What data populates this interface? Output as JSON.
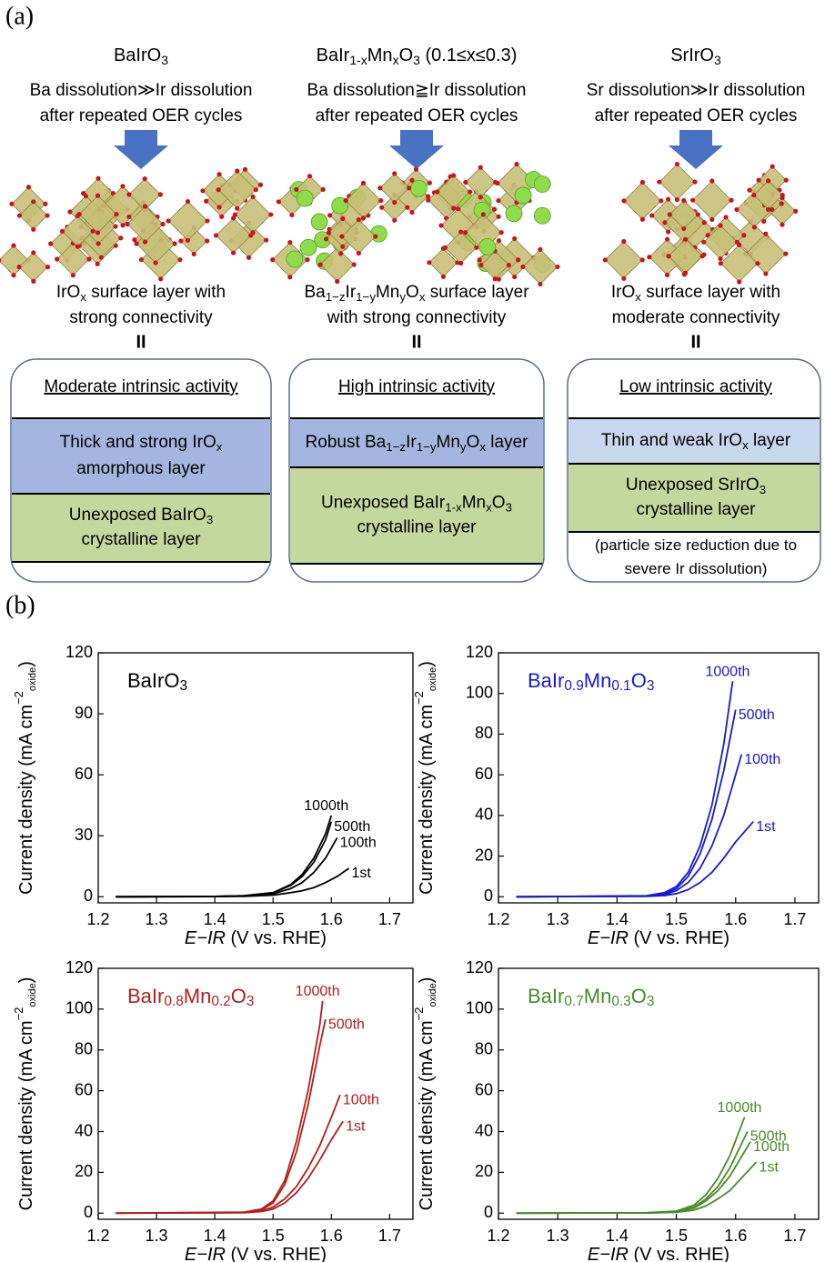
{
  "panel_a": {
    "label": "(a)",
    "columns": [
      {
        "compound": [
          [
            "BaIrO",
            "3"
          ]
        ],
        "dissolution": [
          [
            "Ba dissolution≫Ir dissolution"
          ],
          [
            "after repeated OER cycles"
          ]
        ],
        "surface": [
          [
            "IrO",
            "x",
            " surface layer with"
          ],
          [
            "strong connectivity"
          ]
        ],
        "equals": "II",
        "activity": "Moderate intrinsic activity",
        "top_layer": [
          [
            "Thick and strong IrO",
            "x"
          ],
          [
            "amorphous layer"
          ]
        ],
        "bottom_layer": [
          [
            "Unexposed BaIrO",
            "3"
          ],
          [
            "crystalline layer"
          ]
        ]
      },
      {
        "compound": [
          [
            "BaIr",
            "1-x",
            "Mn",
            "x",
            "O",
            "3",
            " (0.1≤x≤0.3)"
          ]
        ],
        "dissolution": [
          [
            "Ba dissolution≧Ir dissolution"
          ],
          [
            "after repeated OER cycles"
          ]
        ],
        "surface": [
          [
            "Ba",
            "1−z",
            "Ir",
            "1−y",
            "Mn",
            "y",
            "O",
            "x",
            " surface layer"
          ],
          [
            "with strong connectivity"
          ]
        ],
        "equals": "II",
        "activity": "High intrinsic activity",
        "top_layer": [
          [
            "Robust Ba",
            "1−z",
            "Ir",
            "1−y",
            "Mn",
            "y",
            "O",
            "x",
            " layer"
          ]
        ],
        "bottom_layer": [
          [
            "Unexposed BaIr",
            "1-x",
            "Mn",
            "x",
            "O",
            "3"
          ],
          [
            "crystalline layer"
          ]
        ]
      },
      {
        "compound": [
          [
            "SrIrO",
            "3"
          ]
        ],
        "dissolution": [
          [
            "Sr dissolution≫Ir dissolution"
          ],
          [
            "after repeated OER cycles"
          ]
        ],
        "surface": [
          [
            "IrO",
            "x",
            " surface layer with"
          ],
          [
            "moderate connectivity"
          ]
        ],
        "equals": "II",
        "activity": "Low intrinsic activity",
        "top_layer": [
          [
            "Thin and weak IrO",
            "x",
            " layer"
          ]
        ],
        "bottom_layer": [
          [
            "Unexposed SrIrO",
            "3"
          ],
          [
            "crystalline layer"
          ]
        ],
        "note": [
          [
            "(particle size reduction due to"
          ],
          [
            "severe Ir dissolution)"
          ]
        ]
      }
    ]
  },
  "panel_b": {
    "label": "(b)"
  },
  "chart_data": [
    {
      "type": "line",
      "title": [
        "BaIrO",
        "3"
      ],
      "xlabel": [
        "E−IR",
        " (V vs. RHE)"
      ],
      "ylabel": [
        "Current density (mA cm",
        "−2",
        "oxide",
        ")"
      ],
      "xlim": [
        1.2,
        1.74
      ],
      "xticks": [
        1.2,
        1.3,
        1.4,
        1.5,
        1.6,
        1.7
      ],
      "ylim": [
        -3,
        120
      ],
      "yticks": [
        0,
        30,
        60,
        90,
        120
      ],
      "series": [
        {
          "name": "1st",
          "color": "#000000",
          "x": [
            1.23,
            1.4,
            1.45,
            1.5,
            1.53,
            1.55,
            1.57,
            1.59,
            1.61,
            1.63
          ],
          "values": [
            0,
            0.1,
            0.2,
            0.8,
            2,
            3,
            4.5,
            7,
            10,
            14
          ]
        },
        {
          "name": "100th",
          "color": "#000000",
          "x": [
            1.23,
            1.4,
            1.45,
            1.5,
            1.53,
            1.55,
            1.57,
            1.59,
            1.61
          ],
          "values": [
            0,
            0.1,
            0.4,
            1.5,
            4,
            7,
            12,
            19,
            29
          ]
        },
        {
          "name": "500th",
          "color": "#000000",
          "x": [
            1.23,
            1.4,
            1.45,
            1.5,
            1.53,
            1.55,
            1.57,
            1.59,
            1.6
          ],
          "values": [
            0,
            0.2,
            0.5,
            2,
            5.5,
            10,
            17,
            28,
            37
          ]
        },
        {
          "name": "1000th",
          "color": "#000000",
          "x": [
            1.23,
            1.4,
            1.45,
            1.5,
            1.53,
            1.55,
            1.57,
            1.59,
            1.6
          ],
          "values": [
            0,
            0.2,
            0.5,
            2,
            6,
            11,
            19,
            31,
            40
          ]
        }
      ]
    },
    {
      "type": "line",
      "title": [
        "BaIr",
        "0.9",
        "Mn",
        "0.1",
        "O",
        "3"
      ],
      "xlabel": [
        "E−IR",
        " (V vs. RHE)"
      ],
      "ylabel": [
        "Current density (mA cm",
        "−2",
        "oxide",
        ")"
      ],
      "xlim": [
        1.2,
        1.74
      ],
      "xticks": [
        1.2,
        1.3,
        1.4,
        1.5,
        1.6,
        1.7
      ],
      "ylim": [
        -3,
        120
      ],
      "yticks": [
        0,
        20,
        40,
        60,
        80,
        100,
        120
      ],
      "series": [
        {
          "name": "1st",
          "color": "#1a1ad0",
          "x": [
            1.23,
            1.45,
            1.48,
            1.5,
            1.52,
            1.54,
            1.56,
            1.58,
            1.6,
            1.63
          ],
          "values": [
            0,
            0.2,
            0.6,
            1.5,
            3.5,
            7,
            12,
            19,
            27,
            37
          ]
        },
        {
          "name": "100th",
          "color": "#1a1ad0",
          "x": [
            1.23,
            1.45,
            1.48,
            1.5,
            1.52,
            1.54,
            1.56,
            1.58,
            1.6,
            1.61
          ],
          "values": [
            0,
            0.3,
            1,
            3,
            7,
            14,
            25,
            40,
            60,
            70
          ]
        },
        {
          "name": "500th",
          "color": "#1a1ad0",
          "x": [
            1.23,
            1.45,
            1.48,
            1.5,
            1.52,
            1.54,
            1.56,
            1.58,
            1.6
          ],
          "values": [
            0,
            0.4,
            1.5,
            4,
            10,
            21,
            38,
            62,
            92
          ]
        },
        {
          "name": "1000th",
          "color": "#1a1ad0",
          "x": [
            1.23,
            1.45,
            1.48,
            1.5,
            1.52,
            1.54,
            1.56,
            1.58,
            1.595
          ],
          "values": [
            0,
            0.5,
            2,
            5,
            12,
            25,
            45,
            75,
            106
          ]
        }
      ]
    },
    {
      "type": "line",
      "title": [
        "BaIr",
        "0.8",
        "Mn",
        "0.2",
        "O",
        "3"
      ],
      "xlabel": [
        "E−IR",
        " (V vs. RHE)"
      ],
      "ylabel": [
        "Current density (mA cm",
        "−2",
        "oxide",
        ")"
      ],
      "xlim": [
        1.2,
        1.74
      ],
      "xticks": [
        1.2,
        1.3,
        1.4,
        1.5,
        1.6,
        1.7
      ],
      "ylim": [
        -3,
        120
      ],
      "yticks": [
        0,
        20,
        40,
        60,
        80,
        100,
        120
      ],
      "series": [
        {
          "name": "1st",
          "color": "#b41e1e",
          "x": [
            1.23,
            1.45,
            1.48,
            1.5,
            1.52,
            1.54,
            1.56,
            1.58,
            1.6,
            1.62
          ],
          "values": [
            0,
            0.2,
            0.8,
            2,
            5,
            10,
            17,
            26,
            36,
            45
          ]
        },
        {
          "name": "100th",
          "color": "#b41e1e",
          "x": [
            1.23,
            1.45,
            1.48,
            1.5,
            1.52,
            1.54,
            1.56,
            1.58,
            1.6,
            1.615
          ],
          "values": [
            0,
            0.3,
            1,
            3,
            7,
            13,
            22,
            33,
            47,
            58
          ]
        },
        {
          "name": "500th",
          "color": "#b41e1e",
          "x": [
            1.23,
            1.45,
            1.48,
            1.5,
            1.52,
            1.54,
            1.56,
            1.58,
            1.59
          ],
          "values": [
            0,
            0.4,
            1.5,
            5,
            14,
            30,
            53,
            82,
            95
          ]
        },
        {
          "name": "1000th",
          "color": "#b41e1e",
          "x": [
            1.23,
            1.45,
            1.48,
            1.5,
            1.52,
            1.54,
            1.56,
            1.58,
            1.585
          ],
          "values": [
            0,
            0.5,
            2,
            6,
            16,
            35,
            60,
            92,
            104
          ]
        }
      ]
    },
    {
      "type": "line",
      "title": [
        "BaIr",
        "0.7",
        "Mn",
        "0.3",
        "O",
        "3"
      ],
      "xlabel": [
        "E−IR",
        " (V vs. RHE)"
      ],
      "ylabel": [
        "Current density (mA cm",
        "−2",
        "oxide",
        ")"
      ],
      "xlim": [
        1.2,
        1.74
      ],
      "xticks": [
        1.2,
        1.3,
        1.4,
        1.5,
        1.6,
        1.7
      ],
      "ylim": [
        -3,
        120
      ],
      "yticks": [
        0,
        20,
        40,
        60,
        80,
        100,
        120
      ],
      "series": [
        {
          "name": "1st",
          "color": "#4b8a2a",
          "x": [
            1.23,
            1.45,
            1.5,
            1.53,
            1.55,
            1.57,
            1.59,
            1.635
          ],
          "values": [
            0,
            0.1,
            0.4,
            1.5,
            3.5,
            7,
            11,
            25
          ]
        },
        {
          "name": "100th",
          "color": "#4b8a2a",
          "x": [
            1.23,
            1.45,
            1.5,
            1.53,
            1.55,
            1.57,
            1.59,
            1.625
          ],
          "values": [
            0,
            0.1,
            0.6,
            2.5,
            6,
            11,
            18,
            35
          ]
        },
        {
          "name": "500th",
          "color": "#4b8a2a",
          "x": [
            1.23,
            1.45,
            1.5,
            1.53,
            1.55,
            1.57,
            1.59,
            1.62
          ],
          "values": [
            0,
            0.2,
            0.8,
            3,
            7,
            13,
            22,
            40
          ]
        },
        {
          "name": "1000th",
          "color": "#4b8a2a",
          "x": [
            1.23,
            1.45,
            1.5,
            1.53,
            1.55,
            1.57,
            1.59,
            1.615
          ],
          "values": [
            0,
            0.2,
            1,
            4,
            9,
            17,
            28,
            47
          ]
        }
      ]
    }
  ]
}
